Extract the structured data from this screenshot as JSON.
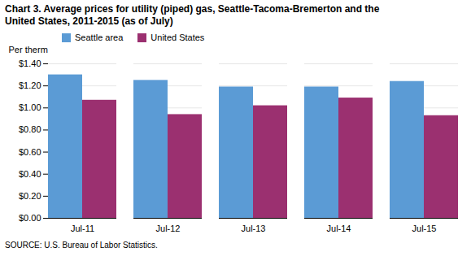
{
  "chart_data": {
    "type": "bar",
    "title": "Chart 3. Average prices for utility (piped) gas, Seattle-Tacoma-Bremerton and the\nUnited States, 2011-2015  (as of July)",
    "ylabel": "Per therm",
    "source": "SOURCE: U.S. Bureau of Labor Statistics.",
    "categories": [
      "Jul-11",
      "Jul-12",
      "Jul-13",
      "Jul-14",
      "Jul-15"
    ],
    "series": [
      {
        "name": "Seattle area",
        "color": "#5B9BD5",
        "values": [
          1.3,
          1.25,
          1.19,
          1.19,
          1.24
        ]
      },
      {
        "name": "United States",
        "color": "#9B3070",
        "values": [
          1.07,
          0.94,
          1.02,
          1.09,
          0.93
        ]
      }
    ],
    "ylim": [
      0.0,
      1.4
    ],
    "yticks": [
      {
        "value": 0.0,
        "label": "$0.00"
      },
      {
        "value": 0.2,
        "label": "$0.20"
      },
      {
        "value": 0.4,
        "label": "$0.40"
      },
      {
        "value": 0.6,
        "label": "$0.60"
      },
      {
        "value": 0.8,
        "label": "$0.80"
      },
      {
        "value": 1.0,
        "label": "$1.00"
      },
      {
        "value": 1.2,
        "label": "$1.20"
      },
      {
        "value": 1.4,
        "label": "$1.40"
      }
    ],
    "grid": true,
    "legend": "upper left"
  }
}
